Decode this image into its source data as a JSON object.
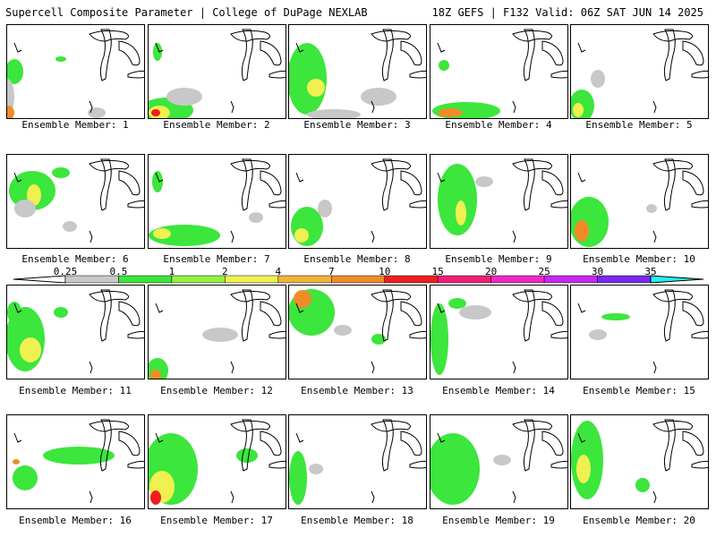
{
  "header": {
    "title_left": "Supercell Composite Parameter | College of DuPage NEXLAB",
    "title_right": "18Z GEFS | F132 Valid: 06Z SAT JUN 14 2025"
  },
  "colorbar": {
    "labels": [
      "0.25",
      "0.5",
      "1",
      "2",
      "4",
      "7",
      "10",
      "15",
      "20",
      "25",
      "30",
      "35"
    ],
    "colors": [
      "#c8c8c8",
      "#3ce63c",
      "#96f046",
      "#f0f050",
      "#f0b43c",
      "#f08c28",
      "#f01e1e",
      "#f01e78",
      "#f028c8",
      "#c828f0",
      "#7828f0",
      "#b478f0",
      "#28f0f0"
    ]
  },
  "panels": [
    {
      "label": "Ensemble Member: 1"
    },
    {
      "label": "Ensemble Member: 2"
    },
    {
      "label": "Ensemble Member: 3"
    },
    {
      "label": "Ensemble Member: 4"
    },
    {
      "label": "Ensemble Member: 5"
    },
    {
      "label": "Ensemble Member: 6"
    },
    {
      "label": "Ensemble Member: 7"
    },
    {
      "label": "Ensemble Member: 8"
    },
    {
      "label": "Ensemble Member: 9"
    },
    {
      "label": "Ensemble Member: 10"
    },
    {
      "label": "Ensemble Member: 11"
    },
    {
      "label": "Ensemble Member: 12"
    },
    {
      "label": "Ensemble Member: 13"
    },
    {
      "label": "Ensemble Member: 14"
    },
    {
      "label": "Ensemble Member: 15"
    },
    {
      "label": "Ensemble Member: 16"
    },
    {
      "label": "Ensemble Member: 17"
    },
    {
      "label": "Ensemble Member: 18"
    },
    {
      "label": "Ensemble Member: 19"
    },
    {
      "label": "Ensemble Member: 20"
    }
  ]
}
